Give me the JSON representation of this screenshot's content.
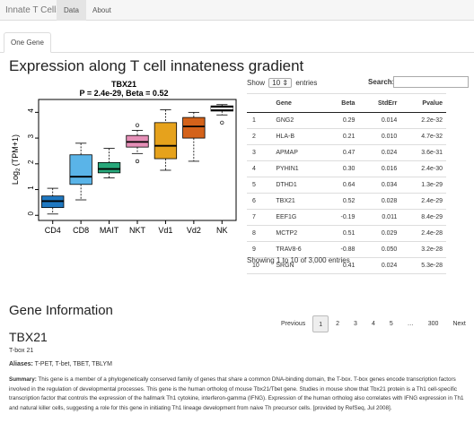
{
  "navbar": {
    "brand": "Innate T Cells",
    "tabs": [
      {
        "label": "Data"
      },
      {
        "label": "About"
      }
    ]
  },
  "subtabs": [
    {
      "label": "One Gene"
    }
  ],
  "page_title": "Expression along T cell innateness gradient",
  "chart_data": {
    "type": "box",
    "title": "TBX21",
    "subtitle": "P = 2.4e-29, Beta = 0.52",
    "ylabel_main": "Log",
    "ylabel_sub": "2",
    "ylabel_rest": " (TPM+1)",
    "categories": [
      "CD4",
      "CD8",
      "MAIT",
      "NKT",
      "Vd1",
      "Vd2",
      "NK"
    ],
    "colors": [
      "#1f78c1",
      "#5ab4e8",
      "#27a87a",
      "#e58fb7",
      "#e6a21c",
      "#d4621a",
      "#111111"
    ],
    "ylim": [
      -0.2,
      4.5
    ],
    "yticks": [
      "0",
      "1",
      "2",
      "3",
      "4"
    ],
    "boxes": [
      {
        "min": 0.05,
        "q1": 0.3,
        "median": 0.55,
        "q3": 0.75,
        "max": 1.05,
        "outliers": []
      },
      {
        "min": 0.6,
        "q1": 1.2,
        "median": 1.5,
        "q3": 2.35,
        "max": 2.8,
        "outliers": []
      },
      {
        "min": 1.45,
        "q1": 1.65,
        "median": 1.8,
        "q3": 2.05,
        "max": 2.6,
        "outliers": []
      },
      {
        "min": 2.4,
        "q1": 2.65,
        "median": 2.85,
        "q3": 3.1,
        "max": 3.3,
        "outliers": [
          2.1,
          3.5
        ]
      },
      {
        "min": 1.75,
        "q1": 2.2,
        "median": 2.7,
        "q3": 3.6,
        "max": 4.1,
        "outliers": []
      },
      {
        "min": 2.1,
        "q1": 3.0,
        "median": 3.45,
        "q3": 3.8,
        "max": 4.0,
        "outliers": []
      },
      {
        "min": 3.9,
        "q1": 4.05,
        "median": 4.15,
        "q3": 4.25,
        "max": 4.3,
        "outliers": [
          3.6
        ]
      }
    ]
  },
  "table": {
    "show_label": "Show",
    "length_value": "10",
    "entries_label": "entries",
    "search_label": "Search:",
    "columns": [
      "",
      "Gene",
      "Beta",
      "StdErr",
      "Pvalue"
    ],
    "rows": [
      [
        "1",
        "GNG2",
        "0.29",
        "0.014",
        "2.2e-32"
      ],
      [
        "2",
        "HLA-B",
        "0.21",
        "0.010",
        "4.7e-32"
      ],
      [
        "3",
        "APMAP",
        "0.47",
        "0.024",
        "3.6e-31"
      ],
      [
        "4",
        "PYHIN1",
        "0.30",
        "0.016",
        "2.4e-30"
      ],
      [
        "5",
        "DTHD1",
        "0.64",
        "0.034",
        "1.3e-29"
      ],
      [
        "6",
        "TBX21",
        "0.52",
        "0.028",
        "2.4e-29"
      ],
      [
        "7",
        "EEF1G",
        "-0.19",
        "0.011",
        "8.4e-29"
      ],
      [
        "8",
        "MCTP2",
        "0.51",
        "0.029",
        "2.4e-28"
      ],
      [
        "9",
        "TRAV8-6",
        "-0.88",
        "0.050",
        "3.2e-28"
      ],
      [
        "10",
        "SRGN",
        "0.41",
        "0.024",
        "5.3e-28"
      ]
    ],
    "info": "Showing 1 to 10 of 3,000 entries"
  },
  "pager": {
    "previous": "Previous",
    "pages": [
      "1",
      "2",
      "3",
      "4",
      "5",
      "…",
      "300"
    ],
    "next": "Next"
  },
  "gene_info": {
    "heading": "Gene Information",
    "symbol": "TBX21",
    "name": "T-box 21",
    "aliases_label": "Aliases:",
    "aliases": " T-PET, T-bet, TBET, TBLYM",
    "summary_label": "Summary:",
    "summary": " This gene is a member of a phylogenetically conserved family of genes that share a common DNA-binding domain, the T-box. T-box genes encode transcription factors involved in the regulation of developmental processes. This gene is the human ortholog of mouse Tbx21/Tbet gene. Studies in mouse show that Tbx21 protein is a Th1 cell-specific transcription factor that controls the expression of the hallmark Th1 cytokine, interferon-gamma (IFNG). Expression of the human ortholog also correlates with IFNG expression in Th1 and natural killer cells, suggesting a role for this gene in initiating Th1 lineage development from naive Th precursor cells. [provided by RefSeq, Jul 2008]."
  }
}
